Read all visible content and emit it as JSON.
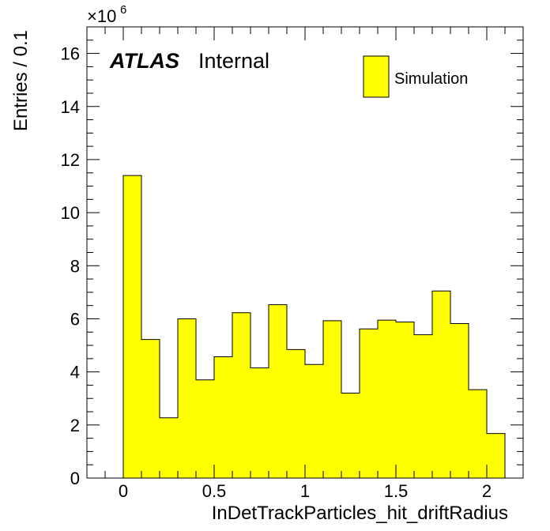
{
  "chart_data": {
    "type": "bar",
    "histogram": true,
    "x_bin_edges": [
      0,
      0.1,
      0.2,
      0.3,
      0.4,
      0.5,
      0.6,
      0.7,
      0.8,
      0.9,
      1.0,
      1.1,
      1.2,
      1.3,
      1.4,
      1.5,
      1.6,
      1.7,
      1.8,
      1.9,
      2.0,
      2.1
    ],
    "series": [
      {
        "name": "Simulation",
        "color": "#ffff00",
        "values": [
          11.4,
          5.22,
          2.27,
          6.0,
          3.7,
          4.57,
          6.23,
          4.15,
          6.53,
          4.84,
          4.28,
          5.93,
          3.2,
          5.62,
          5.95,
          5.88,
          5.4,
          7.05,
          5.82,
          3.33,
          1.68
        ]
      }
    ],
    "xlabel": "InDetTrackParticles_hit_driftRadius",
    "ylabel": "Entries / 0.1",
    "y_multiplier": "×10",
    "y_multiplier_exp": "6",
    "xlim": [
      -0.2,
      2.2
    ],
    "ylim": [
      0,
      17
    ],
    "x_ticks": [
      0,
      0.5,
      1,
      1.5,
      2
    ],
    "x_tick_labels": [
      "0",
      "0.5",
      "1",
      "1.5",
      "2"
    ],
    "y_ticks": [
      0,
      2,
      4,
      6,
      8,
      10,
      12,
      14,
      16
    ],
    "y_tick_labels": [
      "0",
      "2",
      "4",
      "6",
      "8",
      "10",
      "12",
      "14",
      "16"
    ],
    "legend_position": "top-right",
    "grid": false
  },
  "labels": {
    "atlas": "ATLAS",
    "internal": "Internal"
  }
}
